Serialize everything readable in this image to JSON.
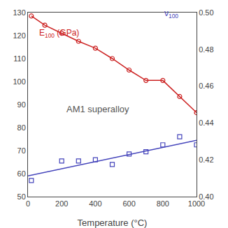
{
  "chart_data": {
    "type": "line",
    "xlabel": "Temperature (°C)",
    "xlim": [
      0,
      1000
    ],
    "xticks": [
      0,
      200,
      400,
      600,
      800,
      1000
    ],
    "ylim": [
      50,
      130
    ],
    "yticks": [
      50,
      60,
      70,
      80,
      90,
      100,
      110,
      120,
      130
    ],
    "y2lim": [
      0.4,
      0.5
    ],
    "y2ticks": [
      {
        "value": 0.4,
        "label": "0.40"
      },
      0.42,
      0.44,
      0.46,
      0.48,
      {
        "value": 0.5,
        "label": "0.50"
      }
    ],
    "grid": false,
    "series": [
      {
        "type": "line",
        "color": "#cc2222",
        "marker": "circle-open",
        "line_style": "solid",
        "x": [
          20,
          100,
          200,
          300,
          400,
          500,
          600,
          700,
          800,
          900,
          1000
        ],
        "values": [
          128.5,
          124.5,
          121.0,
          117.5,
          114.5,
          110.0,
          105.0,
          100.5,
          100.5,
          93.5,
          86.5
        ]
      },
      {
        "type": "line",
        "color": "#4444bb",
        "line_style": "solid",
        "x": [
          0,
          1000
        ],
        "values": [
          59.0,
          74.5
        ]
      },
      {
        "type": "scatter",
        "color": "#4444bb",
        "marker": "square-open",
        "x": [
          20,
          200,
          300,
          400,
          500,
          600,
          700,
          800,
          900,
          1000
        ],
        "values": [
          57.0,
          65.5,
          65.5,
          66.0,
          64.0,
          68.5,
          69.5,
          72.5,
          76.0,
          72.5
        ]
      }
    ],
    "annotations": [
      {
        "text": "E",
        "subscript": "100",
        "suffix": " (GPa)",
        "color": "#cc2222",
        "x": 60,
        "y": 118
      },
      {
        "text": "ν",
        "subscript": "100",
        "color": "#4444bb",
        "x": 800,
        "y": 126.5
      },
      {
        "text": "AM1 superalloy",
        "color": "#555555",
        "x": 220,
        "y": 88
      }
    ]
  }
}
